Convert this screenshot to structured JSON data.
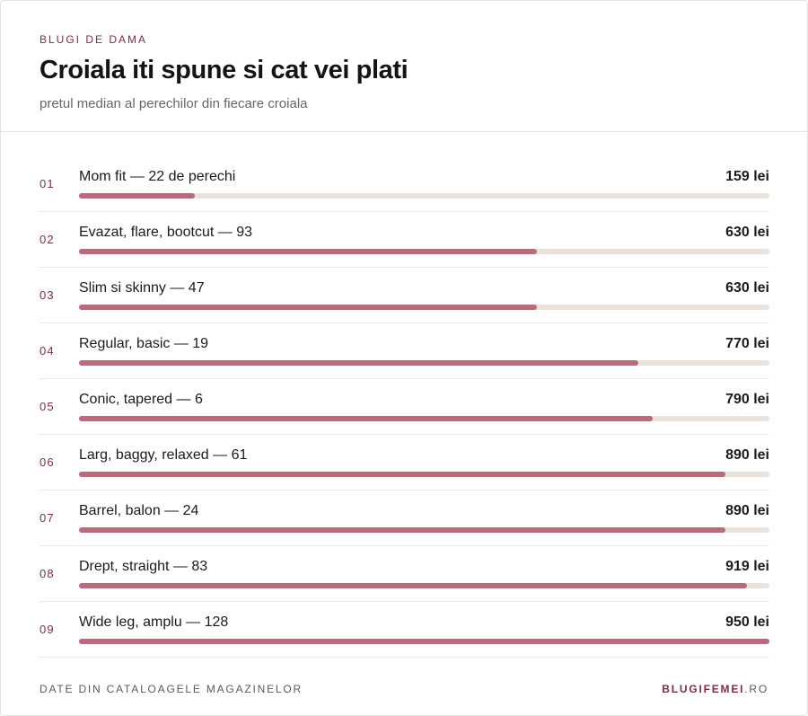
{
  "header": {
    "kicker": "BLUGI DE DAMA",
    "title": "Croiala iti spune si cat vei plati",
    "subtitle": "pretul median al perechilor din fiecare croiala"
  },
  "chart_data": {
    "type": "bar",
    "orientation": "horizontal",
    "title": "Croiala iti spune si cat vei plati",
    "subtitle": "pretul median al perechilor din fiecare croiala",
    "xlim": [
      0,
      950
    ],
    "colors": {
      "fill": "#b86b7b",
      "track": "#ebe2db",
      "accent": "#7a2f42"
    },
    "rows": [
      {
        "rank": "01",
        "label": "Mom fit — 22 de perechi",
        "value": 159,
        "value_label": "159 lei"
      },
      {
        "rank": "02",
        "label": "Evazat, flare, bootcut — 93",
        "value": 630,
        "value_label": "630 lei"
      },
      {
        "rank": "03",
        "label": "Slim si skinny — 47",
        "value": 630,
        "value_label": "630 lei"
      },
      {
        "rank": "04",
        "label": "Regular, basic — 19",
        "value": 770,
        "value_label": "770 lei"
      },
      {
        "rank": "05",
        "label": "Conic, tapered — 6",
        "value": 790,
        "value_label": "790 lei"
      },
      {
        "rank": "06",
        "label": "Larg, baggy, relaxed — 61",
        "value": 890,
        "value_label": "890 lei"
      },
      {
        "rank": "07",
        "label": "Barrel, balon — 24",
        "value": 890,
        "value_label": "890 lei"
      },
      {
        "rank": "08",
        "label": "Drept, straight — 83",
        "value": 919,
        "value_label": "919 lei"
      },
      {
        "rank": "09",
        "label": "Wide leg, amplu — 128",
        "value": 950,
        "value_label": "950 lei"
      }
    ]
  },
  "footer": {
    "source": "DATE DIN CATALOAGELE MAGAZINELOR",
    "brand_name": "BLUGIFEMEI",
    "brand_tld": ".RO"
  }
}
